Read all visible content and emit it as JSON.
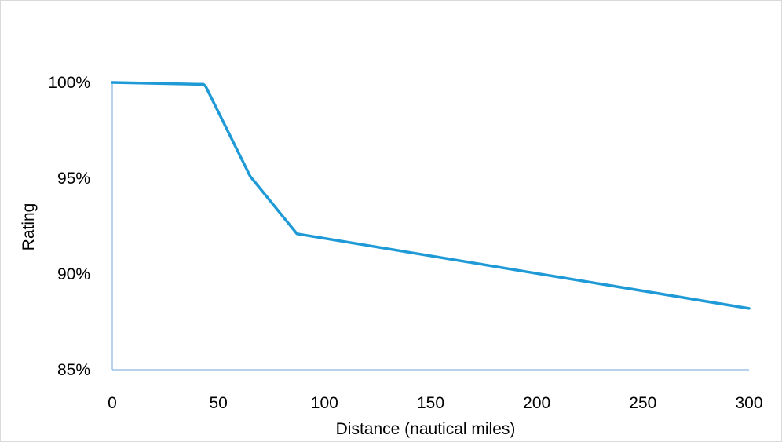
{
  "chart_data": {
    "type": "line",
    "title": "",
    "xlabel": "Distance (nautical miles)",
    "ylabel": "Rating",
    "xlim": [
      0,
      300
    ],
    "ylim": [
      0.85,
      1.0
    ],
    "xticks": [
      0,
      50,
      100,
      150,
      200,
      250,
      300
    ],
    "xtick_labels": [
      "0",
      "50",
      "100",
      "150",
      "200",
      "250",
      "300"
    ],
    "yticks": [
      0.85,
      0.9,
      0.95,
      1.0
    ],
    "ytick_labels": [
      "85%",
      "90%",
      "95%",
      "100%"
    ],
    "grid": false,
    "legend": "none",
    "series": [
      {
        "color": "#1f9ad6",
        "x": [
          0,
          43,
          44,
          65,
          87,
          300
        ],
        "y": [
          1.0,
          0.999,
          0.998,
          0.951,
          0.921,
          0.882
        ]
      }
    ],
    "axis_color": "#9dc3e6"
  }
}
